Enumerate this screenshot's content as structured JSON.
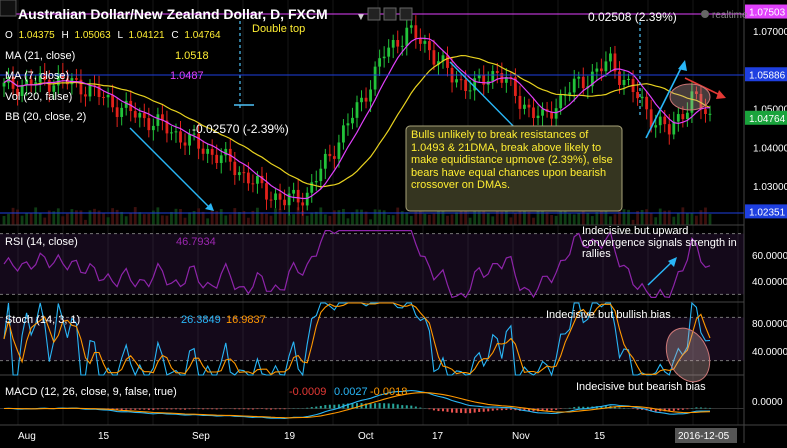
{
  "header": {
    "title": "Australian Dollar/New Zealand Dollar, D, FXCM",
    "realtime_label": "realtime",
    "ohlc": {
      "o_label": "O",
      "o_value": "1.04375",
      "h_label": "H",
      "h_value": "1.05063",
      "l_label": "L",
      "l_value": "1.04121",
      "c_label": "C",
      "c_value": "1.04764"
    }
  },
  "indicators": {
    "ma21": {
      "label": "MA (21, close)",
      "value": "1.0518"
    },
    "ma7": {
      "label": "MA (7, close)",
      "value": "1.0487"
    },
    "vol": {
      "label": "Vol (20, false)"
    },
    "bb": {
      "label": "BB (20, close, 2)"
    }
  },
  "price_axis": {
    "ticks": [
      "1.07000",
      "1.05000",
      "1.04000",
      "1.03000"
    ],
    "badges": [
      {
        "text": "1.07503",
        "color": "#e040fb"
      },
      {
        "text": "1.05886",
        "color": "#1e3fe0"
      },
      {
        "text": "1.04764",
        "color": "#1aa33c"
      },
      {
        "text": "1.02351",
        "color": "#1e3fe0"
      }
    ]
  },
  "annotations": {
    "double_top": "Double top",
    "move_up": "0.02508 (2.39%)",
    "move_down": "-0.02570 (-2.39%)",
    "note_box": "Bulls unlikely to break resistances of 1.0493 & 21DMA, break above likely to make equidistance upmove (2.39%), else bears have equal chances upon bearish crossover on DMAs.",
    "rsi_note": "Indecisive but upward convergence signals strength in rallies",
    "stoch_note": "Indecisive but bullish bias",
    "macd_note": "Indecisive but bearish bias"
  },
  "rsi_panel": {
    "label": "RSI (14, close)",
    "value": "46.7934",
    "ticks": [
      "60.0000",
      "40.0000"
    ]
  },
  "stoch_panel": {
    "label": "Stoch (14, 3, 1)",
    "k_value": "26.3849",
    "d_value": "16.9837",
    "ticks": [
      "80.0000",
      "40.0000"
    ]
  },
  "macd_panel": {
    "label": "MACD (12, 26, close, 9, false, true)",
    "v1": "-0.0009",
    "v2": "0.0027",
    "v3": "-0.0018",
    "ticks": [
      "0.0000"
    ]
  },
  "x_axis": {
    "labels": [
      "Aug",
      "15",
      "Sep",
      "19",
      "Oct",
      "17",
      "Nov",
      "15"
    ],
    "current_date": "2016-12-05"
  },
  "chart_data": {
    "type": "candlestick",
    "title": "Australian Dollar/New Zealand Dollar, D, FXCM",
    "x_range": [
      "2016-07-25",
      "2016-12-05"
    ],
    "y_range": [
      1.02,
      1.078
    ],
    "last_ohlc": {
      "open": 1.04375,
      "high": 1.05063,
      "low": 1.04121,
      "close": 1.04764
    },
    "series": [
      {
        "name": "MA (21, close)",
        "last": 1.0518
      },
      {
        "name": "MA (7, close)",
        "last": 1.0487
      }
    ],
    "levels": [
      1.07503,
      1.05886,
      1.04764,
      1.02351
    ],
    "indicators": {
      "rsi": {
        "params": "14, close",
        "last": 46.7934
      },
      "stoch": {
        "params": "14, 3, 1",
        "k": 26.3849,
        "d": 16.9837
      },
      "macd": {
        "params": "12, 26, close, 9, false, true",
        "values": [
          -0.0009,
          0.0027,
          -0.0018
        ]
      }
    }
  }
}
